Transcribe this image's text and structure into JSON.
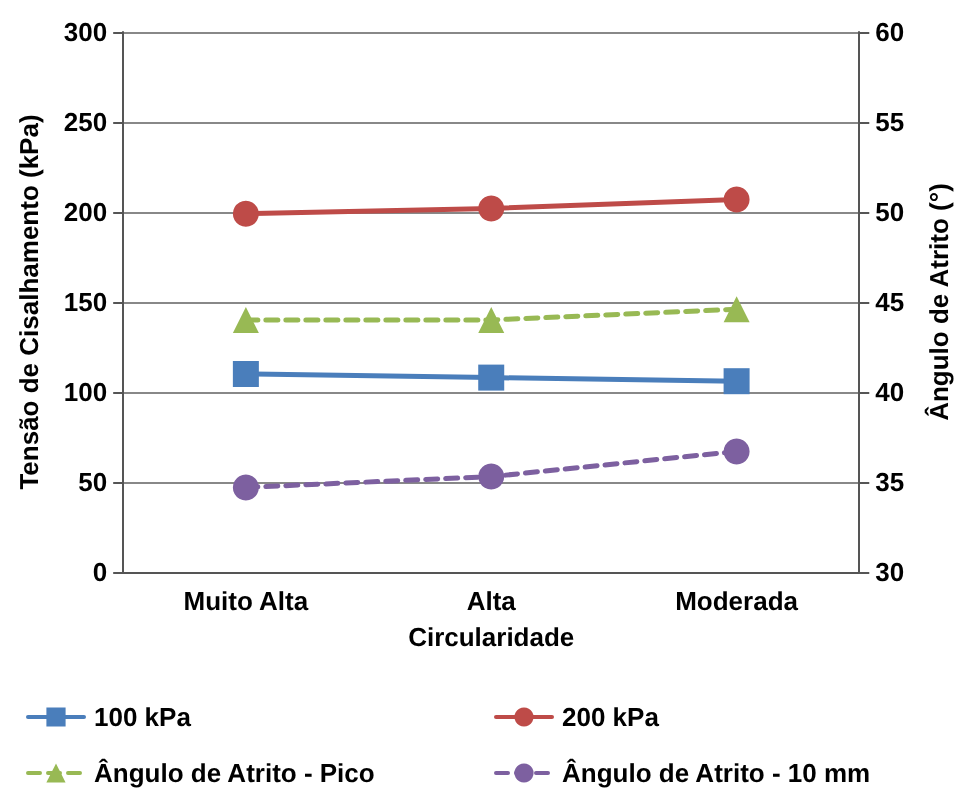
{
  "chart_data": {
    "type": "line",
    "xlabel": "Circularidade",
    "ylabel": "Tensão de Cisalhamento (kPa)",
    "y2label": "Ângulo de Atrito (°)",
    "categories": [
      "Muito Alta",
      "Alta",
      "Moderada"
    ],
    "series": [
      {
        "name": "100 kPa",
        "color": "#4a7ebb",
        "values": [
          110,
          108,
          106
        ],
        "marker": "square",
        "line_style": "solid"
      },
      {
        "name": "200 kPa",
        "color": "#be4b48",
        "values": [
          199,
          202,
          207
        ],
        "marker": "circle",
        "line_style": "solid"
      },
      {
        "name": "Ângulo de Atrito - Pico",
        "color": "#98b954",
        "values": [
          44,
          44,
          44.6
        ],
        "axis": "y2",
        "marker": "triangle",
        "line_style": "dashed"
      },
      {
        "name": "Ângulo de Atrito - 10 mm",
        "color": "#7d60a0",
        "values": [
          34.7,
          35.3,
          36.7
        ],
        "axis": "y2",
        "marker": "circle",
        "line_style": "dashed"
      }
    ],
    "ylim": [
      0,
      300
    ],
    "yticks": [
      0,
      50,
      100,
      150,
      200,
      250,
      300
    ],
    "y2lim": [
      30,
      60
    ],
    "y2ticks": [
      30,
      35,
      40,
      45,
      50,
      55,
      60
    ],
    "grid": "y",
    "legend": "bottom"
  }
}
